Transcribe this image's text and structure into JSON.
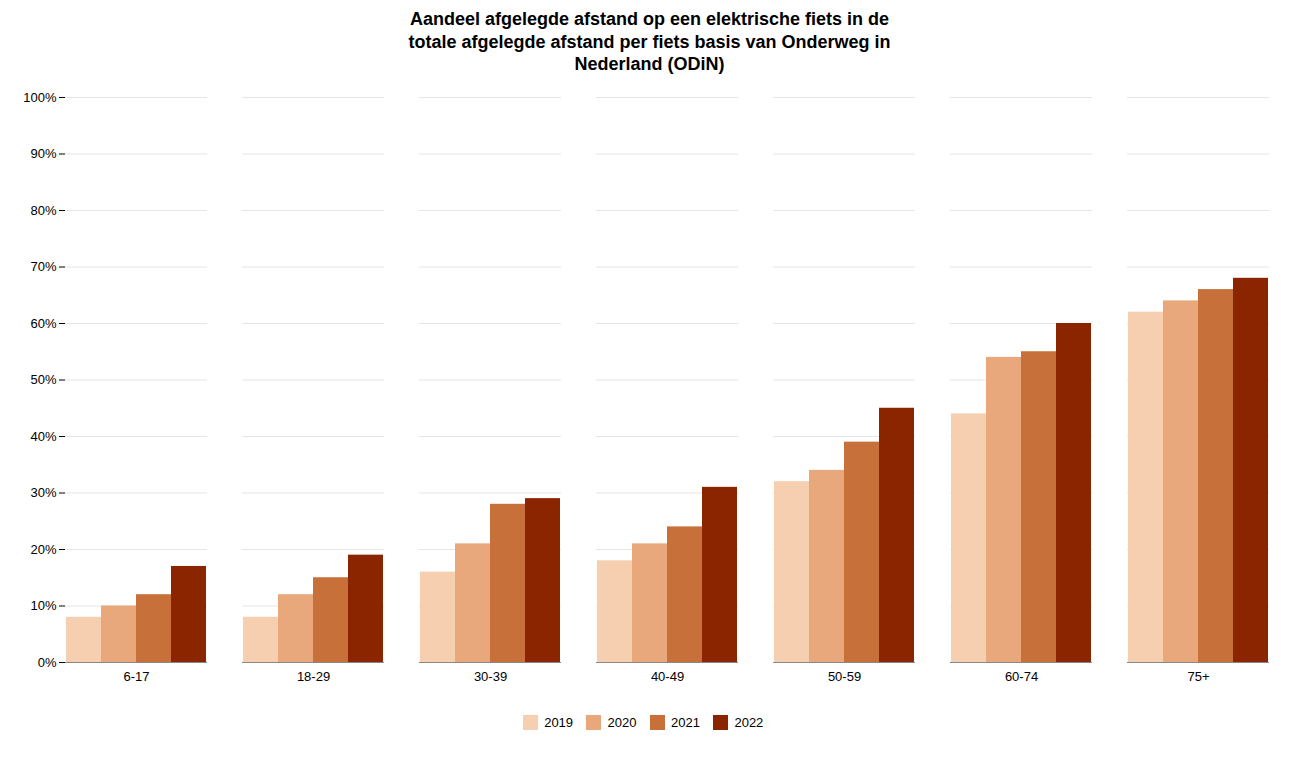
{
  "chart_data": {
    "type": "bar",
    "title": "Aandeel afgelegde afstand op een elektrische fiets in de\ntotale afgelegde afstand per fiets basis van Onderweg in\nNederland (ODiN)",
    "categories": [
      "6-17",
      "18-29",
      "30-39",
      "40-49",
      "50-59",
      "60-74",
      "75+"
    ],
    "series": [
      {
        "name": "2019",
        "color": "#f5cfb0",
        "values": [
          0.08,
          0.08,
          0.16,
          0.18,
          0.32,
          0.44,
          0.62
        ]
      },
      {
        "name": "2020",
        "color": "#e8a87c",
        "values": [
          0.1,
          0.12,
          0.21,
          0.21,
          0.34,
          0.54,
          0.64
        ]
      },
      {
        "name": "2021",
        "color": "#c8703a",
        "values": [
          0.12,
          0.15,
          0.28,
          0.24,
          0.39,
          0.55,
          0.66
        ]
      },
      {
        "name": "2022",
        "color": "#8b2500",
        "values": [
          0.17,
          0.19,
          0.29,
          0.31,
          0.45,
          0.6,
          0.68
        ]
      }
    ],
    "ylim": [
      0,
      1.0
    ],
    "yticks": [
      {
        "value": 0.0,
        "label": "0%"
      },
      {
        "value": 0.1,
        "label": "10%"
      },
      {
        "value": 0.2,
        "label": "20%"
      },
      {
        "value": 0.3,
        "label": "30%"
      },
      {
        "value": 0.4,
        "label": "40%"
      },
      {
        "value": 0.5,
        "label": "50%"
      },
      {
        "value": 0.6,
        "label": "60%"
      },
      {
        "value": 0.7,
        "label": "70%"
      },
      {
        "value": 0.8,
        "label": "80%"
      },
      {
        "value": 0.9,
        "label": "90%"
      },
      {
        "value": 1.0,
        "label": "100%"
      }
    ],
    "grid": true,
    "legend": "bottom"
  }
}
